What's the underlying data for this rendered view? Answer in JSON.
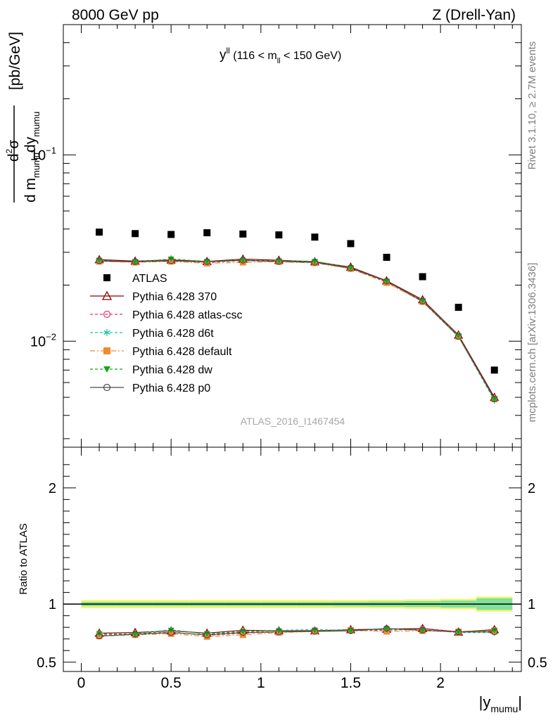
{
  "header": {
    "left": "8000 GeV pp",
    "right": "Z (Drell-Yan)"
  },
  "side": {
    "rivet": "Rivet 3.1.10, ≥ 2.7M events",
    "mcplots": "mcplots.cern.ch [arXiv:1306.3436]"
  },
  "plot_label": {
    "main": "y",
    "sup": "ll",
    "range_a": " (116 < m",
    "sub": "ll",
    "range_b": " < 150 GeV)"
  },
  "ylabel_main": {
    "numerator": "d",
    "numerator_sup": "2",
    "numerator_b": "σ",
    "denominator_a": "d m",
    "denominator_sub": "mumu",
    "denominator_b": "dy",
    "denominator_sub2": "mumu",
    "unit": "[pb/GeV]"
  },
  "ylabel_ratio": "Ratio to ATLAS",
  "xlabel": {
    "a": "|y",
    "sub": "mumu",
    "b": "|"
  },
  "analysis_id": "ATLAS_2016_I1467454",
  "colors": {
    "atlas": "#000000",
    "p370": "#8b0000",
    "atlas_csc": "#ee2c6c",
    "d6t": "#19c6a5",
    "default": "#f28a30",
    "dw": "#1aa31a",
    "p0": "#4a4a4a",
    "band_outer": "#f4f56e",
    "band_inner": "#7fe29a"
  },
  "chart_data": [
    {
      "type": "scatter",
      "panel": "main",
      "yscale": "log",
      "xlim": [
        -0.1,
        2.45
      ],
      "ylim": [
        0.0027,
        0.5
      ],
      "yticks": [
        {
          "v": 0.01,
          "base": "10",
          "exp": "−2"
        },
        {
          "v": 0.1,
          "base": "10",
          "exp": "−1"
        }
      ],
      "x": [
        0.1,
        0.3,
        0.5,
        0.7,
        0.9,
        1.1,
        1.3,
        1.5,
        1.7,
        1.9,
        2.1,
        2.3
      ],
      "series": [
        {
          "name": "ATLAS",
          "values": [
            0.0385,
            0.0378,
            0.0374,
            0.0382,
            0.0376,
            0.0372,
            0.0362,
            0.0334,
            0.0282,
            0.0222,
            0.0152,
            0.007
          ]
        },
        {
          "name": "Pythia 6.428 370",
          "values": [
            0.0274,
            0.0269,
            0.0273,
            0.0268,
            0.0276,
            0.0272,
            0.0267,
            0.025,
            0.0211,
            0.0167,
            0.0108,
            0.005
          ]
        },
        {
          "name": "Pythia 6.428 atlas-csc",
          "values": [
            0.0269,
            0.0266,
            0.0271,
            0.0264,
            0.0271,
            0.0267,
            0.0265,
            0.0245,
            0.0208,
            0.0163,
            0.0106,
            0.0049
          ]
        },
        {
          "name": "Pythia 6.428 d6t",
          "values": [
            0.027,
            0.0267,
            0.0276,
            0.0267,
            0.027,
            0.027,
            0.0269,
            0.0248,
            0.021,
            0.0165,
            0.0106,
            0.0048
          ]
        },
        {
          "name": "Pythia 6.428 default",
          "values": [
            0.0268,
            0.0265,
            0.0268,
            0.0262,
            0.0265,
            0.0267,
            0.0263,
            0.0245,
            0.0206,
            0.0163,
            0.0106,
            0.0049
          ]
        },
        {
          "name": "Pythia 6.428 dw",
          "values": [
            0.0272,
            0.0266,
            0.0276,
            0.0268,
            0.0272,
            0.027,
            0.0268,
            0.0248,
            0.021,
            0.0165,
            0.0107,
            0.0049
          ]
        },
        {
          "name": "Pythia 6.428 p0",
          "values": [
            0.027,
            0.0267,
            0.027,
            0.0267,
            0.0272,
            0.0268,
            0.0265,
            0.0247,
            0.021,
            0.0164,
            0.0106,
            0.0049
          ]
        }
      ]
    },
    {
      "type": "line",
      "panel": "ratio",
      "xlim": [
        -0.1,
        2.45
      ],
      "ylim": [
        0.42,
        2.35
      ],
      "yticks": [
        {
          "v": 0.5,
          "label": "0.5"
        },
        {
          "v": 1,
          "label": "1"
        },
        {
          "v": 2,
          "label": "2"
        }
      ],
      "xticks": [
        {
          "v": 0,
          "label": "0"
        },
        {
          "v": 0.5,
          "label": "0.5"
        },
        {
          "v": 1,
          "label": "1"
        },
        {
          "v": 1.5,
          "label": "1.5"
        },
        {
          "v": 2,
          "label": "2"
        }
      ],
      "x": [
        0.1,
        0.3,
        0.5,
        0.7,
        0.9,
        1.1,
        1.3,
        1.5,
        1.7,
        1.9,
        2.1,
        2.3
      ],
      "band_edges": [
        0.0,
        0.2,
        0.4,
        0.6,
        0.8,
        1.0,
        1.2,
        1.4,
        1.6,
        1.8,
        2.0,
        2.2,
        2.4
      ],
      "band_outer": [
        0.035,
        0.035,
        0.035,
        0.035,
        0.035,
        0.035,
        0.035,
        0.035,
        0.037,
        0.04,
        0.045,
        0.065
      ],
      "band_inner": [
        0.018,
        0.018,
        0.018,
        0.018,
        0.018,
        0.018,
        0.018,
        0.02,
        0.022,
        0.025,
        0.03,
        0.05
      ],
      "series": [
        {
          "name": "Pythia 6.428 370",
          "values": [
            0.75,
            0.755,
            0.77,
            0.75,
            0.775,
            0.77,
            0.77,
            0.78,
            0.785,
            0.79,
            0.76,
            0.78
          ]
        },
        {
          "name": "Pythia 6.428 atlas-csc",
          "values": [
            0.73,
            0.74,
            0.76,
            0.73,
            0.75,
            0.76,
            0.775,
            0.77,
            0.775,
            0.785,
            0.765,
            0.765
          ]
        },
        {
          "name": "Pythia 6.428 d6t",
          "values": [
            0.74,
            0.745,
            0.78,
            0.74,
            0.76,
            0.775,
            0.78,
            0.775,
            0.78,
            0.78,
            0.755,
            0.755
          ]
        },
        {
          "name": "Pythia 6.428 default",
          "values": [
            0.725,
            0.735,
            0.745,
            0.72,
            0.735,
            0.755,
            0.765,
            0.775,
            0.765,
            0.77,
            0.76,
            0.77
          ]
        },
        {
          "name": "Pythia 6.428 dw",
          "values": [
            0.745,
            0.74,
            0.775,
            0.745,
            0.765,
            0.77,
            0.775,
            0.77,
            0.785,
            0.775,
            0.76,
            0.775
          ]
        },
        {
          "name": "Pythia 6.428 p0",
          "values": [
            0.725,
            0.74,
            0.755,
            0.735,
            0.755,
            0.76,
            0.765,
            0.77,
            0.79,
            0.775,
            0.76,
            0.76
          ]
        }
      ]
    }
  ],
  "legend": {
    "items": [
      {
        "label": "ATLAS",
        "color": "#000000",
        "marker": "square",
        "dash": "none"
      },
      {
        "label": "Pythia 6.428 370",
        "color": "#8b0000",
        "marker": "triangle-open",
        "dash": "solid"
      },
      {
        "label": "Pythia 6.428 atlas-csc",
        "color": "#ee2c6c",
        "marker": "circle-open",
        "dash": "dashed"
      },
      {
        "label": "Pythia 6.428 d6t",
        "color": "#19c6a5",
        "marker": "star",
        "dash": "dashed"
      },
      {
        "label": "Pythia 6.428 default",
        "color": "#f28a30",
        "marker": "square",
        "dash": "dashdot"
      },
      {
        "label": "Pythia 6.428 dw",
        "color": "#1aa31a",
        "marker": "triangle-down",
        "dash": "dashed"
      },
      {
        "label": "Pythia 6.428 p0",
        "color": "#4a4a4a",
        "marker": "circle-open",
        "dash": "solid"
      }
    ]
  }
}
